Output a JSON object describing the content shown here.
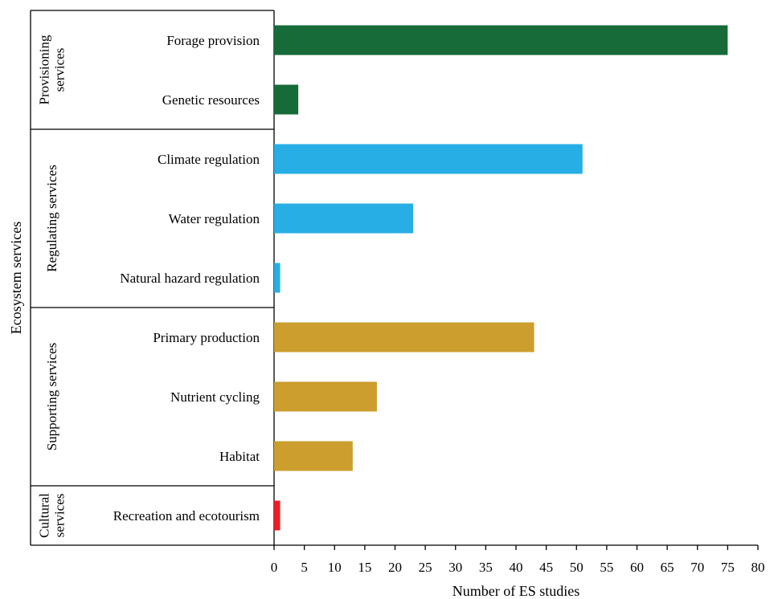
{
  "chart_data": {
    "type": "bar",
    "orientation": "horizontal",
    "xlabel": "Number of ES studies",
    "ylabel": "Ecosystem services",
    "xlim": [
      0,
      80
    ],
    "x_ticks": [
      0,
      5,
      10,
      15,
      20,
      25,
      30,
      35,
      40,
      45,
      50,
      55,
      60,
      65,
      70,
      75,
      80
    ],
    "grid": false,
    "groups": [
      {
        "name": "Provisioning services",
        "name_lines": [
          "Provisioning",
          "services"
        ],
        "color": "#176b38",
        "items": [
          {
            "label": "Forage provision",
            "value": 75
          },
          {
            "label": "Genetic resources",
            "value": 4
          }
        ]
      },
      {
        "name": "Regulating services",
        "name_lines": [
          "Regulating services"
        ],
        "color": "#27aee4",
        "items": [
          {
            "label": "Climate regulation",
            "value": 51
          },
          {
            "label": "Water regulation",
            "value": 23
          },
          {
            "label": "Natural hazard regulation",
            "value": 1
          }
        ]
      },
      {
        "name": "Supporting services",
        "name_lines": [
          "Supporting services"
        ],
        "color": "#cb9e2e",
        "items": [
          {
            "label": "Primary production",
            "value": 43
          },
          {
            "label": "Nutrient cycling",
            "value": 17
          },
          {
            "label": "Habitat",
            "value": 13
          }
        ]
      },
      {
        "name": "Cultural services",
        "name_lines": [
          "Cultural",
          "services"
        ],
        "color": "#ee1c24",
        "items": [
          {
            "label": "Recreation and ecotourism",
            "value": 1
          }
        ]
      }
    ]
  }
}
